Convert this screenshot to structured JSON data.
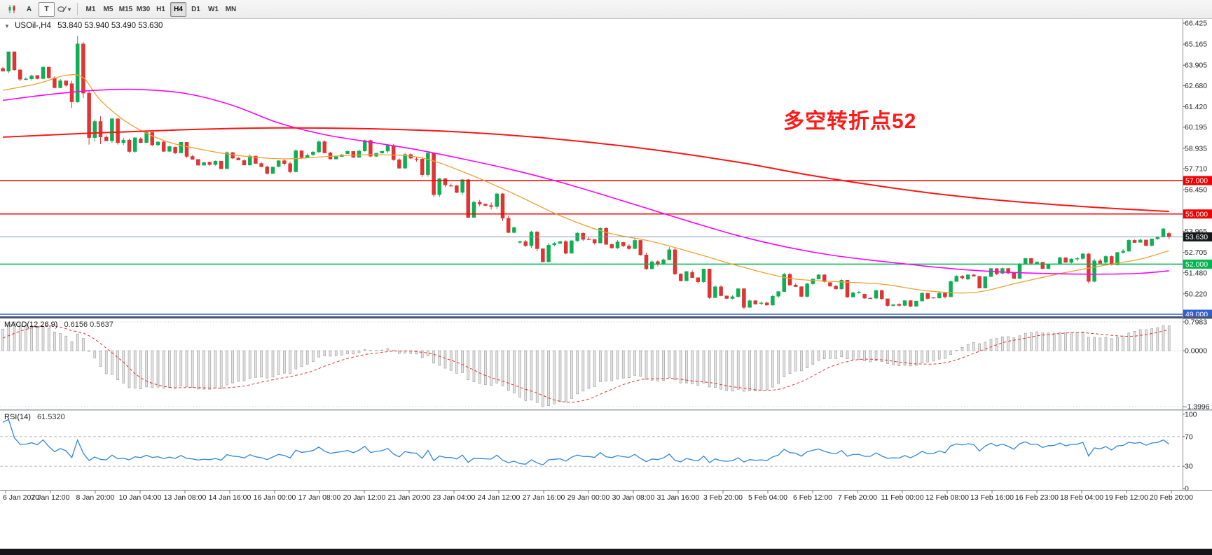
{
  "toolbar": {
    "tool_icons": [
      {
        "name": "chart-icon",
        "label": ""
      },
      {
        "name": "annotation-a-icon",
        "label": "A"
      },
      {
        "name": "text-tool-icon",
        "label": "T"
      },
      {
        "name": "draw-tools-icon",
        "label": ""
      }
    ],
    "timeframes": [
      "M1",
      "M5",
      "M15",
      "M30",
      "H1",
      "H4",
      "D1",
      "W1",
      "MN"
    ],
    "active_timeframe": "H4"
  },
  "header": {
    "dropdown_icon": "▼",
    "symbol_period": "USOil-,H4",
    "ohlc": "53.840 53.940 53.490 53.630"
  },
  "annotation": {
    "text": "多空转折点52",
    "color": "#ff1a1a"
  },
  "panels": {
    "macd": {
      "name": "MACD(12,26,9)",
      "values": "0.6156 0.5637",
      "axis_labels": [
        "0.7983",
        "0.0000",
        "-1.3996"
      ]
    },
    "rsi": {
      "name": "RSI(14)",
      "value": "61.5320",
      "levels": [
        "100",
        "70",
        "30",
        "0"
      ]
    }
  },
  "price_axis": {
    "labels": [
      "66.425",
      "65.165",
      "63.905",
      "62.680",
      "61.420",
      "60.195",
      "58.935",
      "57.710",
      "56.450",
      "53.965",
      "52.705",
      "51.480",
      "50.220"
    ],
    "tags": [
      {
        "text": "57.000",
        "value": 57.0,
        "bg": "#f40000",
        "fg": "#ffffff"
      },
      {
        "text": "55.000",
        "value": 55.0,
        "bg": "#f40000",
        "fg": "#ffffff"
      },
      {
        "text": "52.000",
        "value": 52.0,
        "bg": "#00b650",
        "fg": "#ffffff"
      },
      {
        "text": "49.000",
        "value": 49.0,
        "bg": "#2f5fd0",
        "fg": "#ffffff"
      }
    ],
    "current": {
      "text": "53.630",
      "value": 53.63,
      "bg": "#15181d",
      "fg": "#ffffff"
    }
  },
  "chart_data": {
    "type": "candlestick",
    "symbol": "USOil",
    "period": "H4",
    "bars_per_day": 6,
    "current_bar": {
      "o": 53.84,
      "h": 53.94,
      "l": 53.49,
      "c": 53.63
    },
    "daily_bars": [
      [
        "6 Jan",
        63.71,
        64.72,
        62.94,
        63.27
      ],
      [
        "7 Jan",
        63.29,
        63.84,
        62.52,
        62.7
      ],
      [
        "8 Jan",
        62.8,
        65.65,
        59.15,
        59.61
      ],
      [
        "9 Jan",
        59.6,
        60.75,
        58.66,
        59.56
      ],
      [
        "10 Jan",
        59.5,
        59.96,
        58.72,
        59.04
      ],
      [
        "13 Jan",
        59.0,
        59.31,
        57.91,
        58.08
      ],
      [
        "14 Jan",
        58.1,
        58.74,
        57.67,
        58.23
      ],
      [
        "15 Jan",
        58.2,
        58.56,
        57.36,
        57.81
      ],
      [
        "16 Jan",
        57.85,
        58.87,
        57.45,
        58.52
      ],
      [
        "17 Jan",
        58.55,
        59.4,
        58.27,
        58.54
      ],
      [
        "20 Jan",
        58.6,
        59.46,
        58.37,
        58.64
      ],
      [
        "21 Jan",
        58.65,
        59.18,
        57.72,
        58.34
      ],
      [
        "22 Jan",
        58.3,
        58.68,
        56.02,
        56.74
      ],
      [
        "23 Jan",
        56.7,
        57.1,
        54.77,
        55.59
      ],
      [
        "24 Jan",
        55.6,
        56.28,
        53.85,
        54.19
      ],
      [
        "27 Jan",
        53.3,
        54.0,
        52.13,
        53.14
      ],
      [
        "28 Jan",
        53.15,
        53.94,
        52.58,
        53.48
      ],
      [
        "29 Jan",
        53.5,
        54.22,
        52.91,
        53.33
      ],
      [
        "30 Jan",
        53.3,
        53.55,
        51.66,
        52.14
      ],
      [
        "31 Jan",
        52.15,
        53.02,
        50.97,
        51.56
      ],
      [
        "3 Feb",
        51.5,
        51.72,
        49.92,
        50.11
      ],
      [
        "4 Feb",
        50.1,
        50.55,
        49.31,
        49.61
      ],
      [
        "5 Feb",
        49.65,
        51.48,
        49.52,
        50.75
      ],
      [
        "6 Feb",
        50.75,
        51.4,
        50.0,
        50.95
      ],
      [
        "7 Feb",
        50.9,
        51.09,
        49.99,
        50.32
      ],
      [
        "10 Feb",
        50.2,
        50.48,
        49.44,
        49.57
      ],
      [
        "11 Feb",
        49.6,
        50.31,
        49.42,
        49.94
      ],
      [
        "12 Feb",
        50.0,
        51.34,
        49.94,
        51.17
      ],
      [
        "13 Feb",
        51.1,
        51.77,
        50.56,
        51.42
      ],
      [
        "14 Feb",
        51.45,
        52.36,
        51.12,
        52.05
      ],
      [
        "17 Feb",
        52.0,
        52.44,
        51.7,
        52.1
      ],
      [
        "18 Feb",
        52.1,
        52.67,
        50.85,
        52.05
      ],
      [
        "19 Feb",
        52.1,
        53.49,
        51.92,
        53.29
      ],
      [
        "20 Feb",
        53.3,
        54.14,
        53.05,
        53.63
      ]
    ],
    "prehistory_daily_closes": [
      53.6,
      53.2,
      52.9,
      53.5,
      54.1,
      53.9,
      54.4,
      55.1,
      54.9,
      55.6,
      56.2,
      55.6,
      56.5,
      57.3,
      57.1,
      56.8,
      57.3,
      57.0,
      56.8,
      57.2,
      58.1,
      57.7,
      57.0,
      56.8,
      55.4,
      55.2,
      56.4,
      56.9,
      57.8,
      58.1,
      58.7,
      59.2,
      58.9,
      59.1,
      58.8,
      59.4,
      60.1,
      60.0,
      60.4,
      60.2,
      60.7,
      61.2,
      61.0,
      61.2,
      61.7,
      61.2,
      61.8,
      63.1
    ],
    "moving_averages": [
      {
        "name": "ma-fast",
        "color": "#f0a030",
        "width": 1.3,
        "anchors": [
          [
            0,
            62.4
          ],
          [
            6,
            62.8
          ],
          [
            11,
            63.3
          ],
          [
            14,
            63.15
          ],
          [
            17,
            61.8
          ],
          [
            22,
            60.4
          ],
          [
            28,
            59.4
          ],
          [
            34,
            58.9
          ],
          [
            41,
            58.5
          ],
          [
            49,
            58.3
          ],
          [
            57,
            58.45
          ],
          [
            65,
            58.55
          ],
          [
            73,
            58.35
          ],
          [
            81,
            57.4
          ],
          [
            89,
            56.2
          ],
          [
            97,
            54.9
          ],
          [
            105,
            53.9
          ],
          [
            113,
            53.35
          ],
          [
            121,
            52.6
          ],
          [
            129,
            51.8
          ],
          [
            137,
            51.15
          ],
          [
            145,
            50.95
          ],
          [
            153,
            50.8
          ],
          [
            161,
            50.4
          ],
          [
            169,
            50.3
          ],
          [
            177,
            50.9
          ],
          [
            185,
            51.5
          ],
          [
            193,
            52.0
          ],
          [
            198,
            52.3
          ],
          [
            203,
            52.8
          ]
        ]
      },
      {
        "name": "ma-medium",
        "color": "#ff00ff",
        "width": 1.6,
        "anchors": [
          [
            0,
            61.8
          ],
          [
            8,
            62.15
          ],
          [
            16,
            62.4
          ],
          [
            24,
            62.45
          ],
          [
            32,
            62.2
          ],
          [
            40,
            61.5
          ],
          [
            48,
            60.45
          ],
          [
            56,
            59.75
          ],
          [
            64,
            59.3
          ],
          [
            72,
            58.85
          ],
          [
            80,
            58.3
          ],
          [
            88,
            57.7
          ],
          [
            96,
            57.0
          ],
          [
            104,
            56.2
          ],
          [
            112,
            55.35
          ],
          [
            120,
            54.5
          ],
          [
            128,
            53.7
          ],
          [
            136,
            53.05
          ],
          [
            144,
            52.55
          ],
          [
            152,
            52.2
          ],
          [
            160,
            51.9
          ],
          [
            168,
            51.65
          ],
          [
            176,
            51.5
          ],
          [
            184,
            51.42
          ],
          [
            192,
            51.4
          ],
          [
            198,
            51.45
          ],
          [
            203,
            51.6
          ]
        ]
      },
      {
        "name": "ma-slow",
        "color": "#ff1414",
        "width": 2,
        "anchors": [
          [
            0,
            59.6
          ],
          [
            16,
            59.85
          ],
          [
            32,
            60.05
          ],
          [
            48,
            60.15
          ],
          [
            64,
            60.1
          ],
          [
            80,
            59.9
          ],
          [
            96,
            59.5
          ],
          [
            112,
            58.9
          ],
          [
            128,
            58.1
          ],
          [
            140,
            57.35
          ],
          [
            152,
            56.7
          ],
          [
            164,
            56.15
          ],
          [
            176,
            55.75
          ],
          [
            190,
            55.4
          ],
          [
            203,
            55.15
          ]
        ]
      }
    ],
    "hlines": [
      {
        "price": 57.0,
        "color": "#f40000",
        "width": 1.6
      },
      {
        "price": 55.0,
        "color": "#f40000",
        "width": 1.6
      },
      {
        "price": 52.0,
        "color": "#00b650",
        "width": 1.6
      },
      {
        "price": 49.0,
        "color": "#2f5fd0",
        "width": 1.6
      }
    ],
    "current_price": 53.63,
    "indicators": {
      "macd": {
        "fast": 12,
        "slow": 26,
        "signal": 9
      },
      "rsi": {
        "period": 14
      }
    },
    "time_axis_labels": [
      "6 Jan 2020",
      "7 Jan 12:00",
      "8 Jan 20:00",
      "10 Jan 04:00",
      "13 Jan 08:00",
      "14 Jan 16:00",
      "16 Jan 00:00",
      "17 Jan 08:00",
      "20 Jan 12:00",
      "21 Jan 20:00",
      "23 Jan 04:00",
      "24 Jan 12:00",
      "27 Jan 16:00",
      "29 Jan 00:00",
      "30 Jan 08:00",
      "31 Jan 16:00",
      "3 Feb 20:00",
      "5 Feb 04:00",
      "6 Feb 12:00",
      "7 Feb 20:00",
      "11 Feb 00:00",
      "12 Feb 08:00",
      "13 Feb 16:00",
      "16 Feb 23:00",
      "18 Feb 04:00",
      "19 Feb 12:00",
      "20 Feb 20:00"
    ],
    "price_axis_range": {
      "top_label_price": 66.425,
      "bottom_tag_price": 49.0
    }
  },
  "colors": {
    "up": "#0fae54",
    "down": "#e03333",
    "macd_hist_fill": "#e4e4e4",
    "macd_hist_stroke": "#949494",
    "macd_signal": "#e03333",
    "rsi_line": "#2e86de",
    "price_line": "#7a9ab5"
  }
}
